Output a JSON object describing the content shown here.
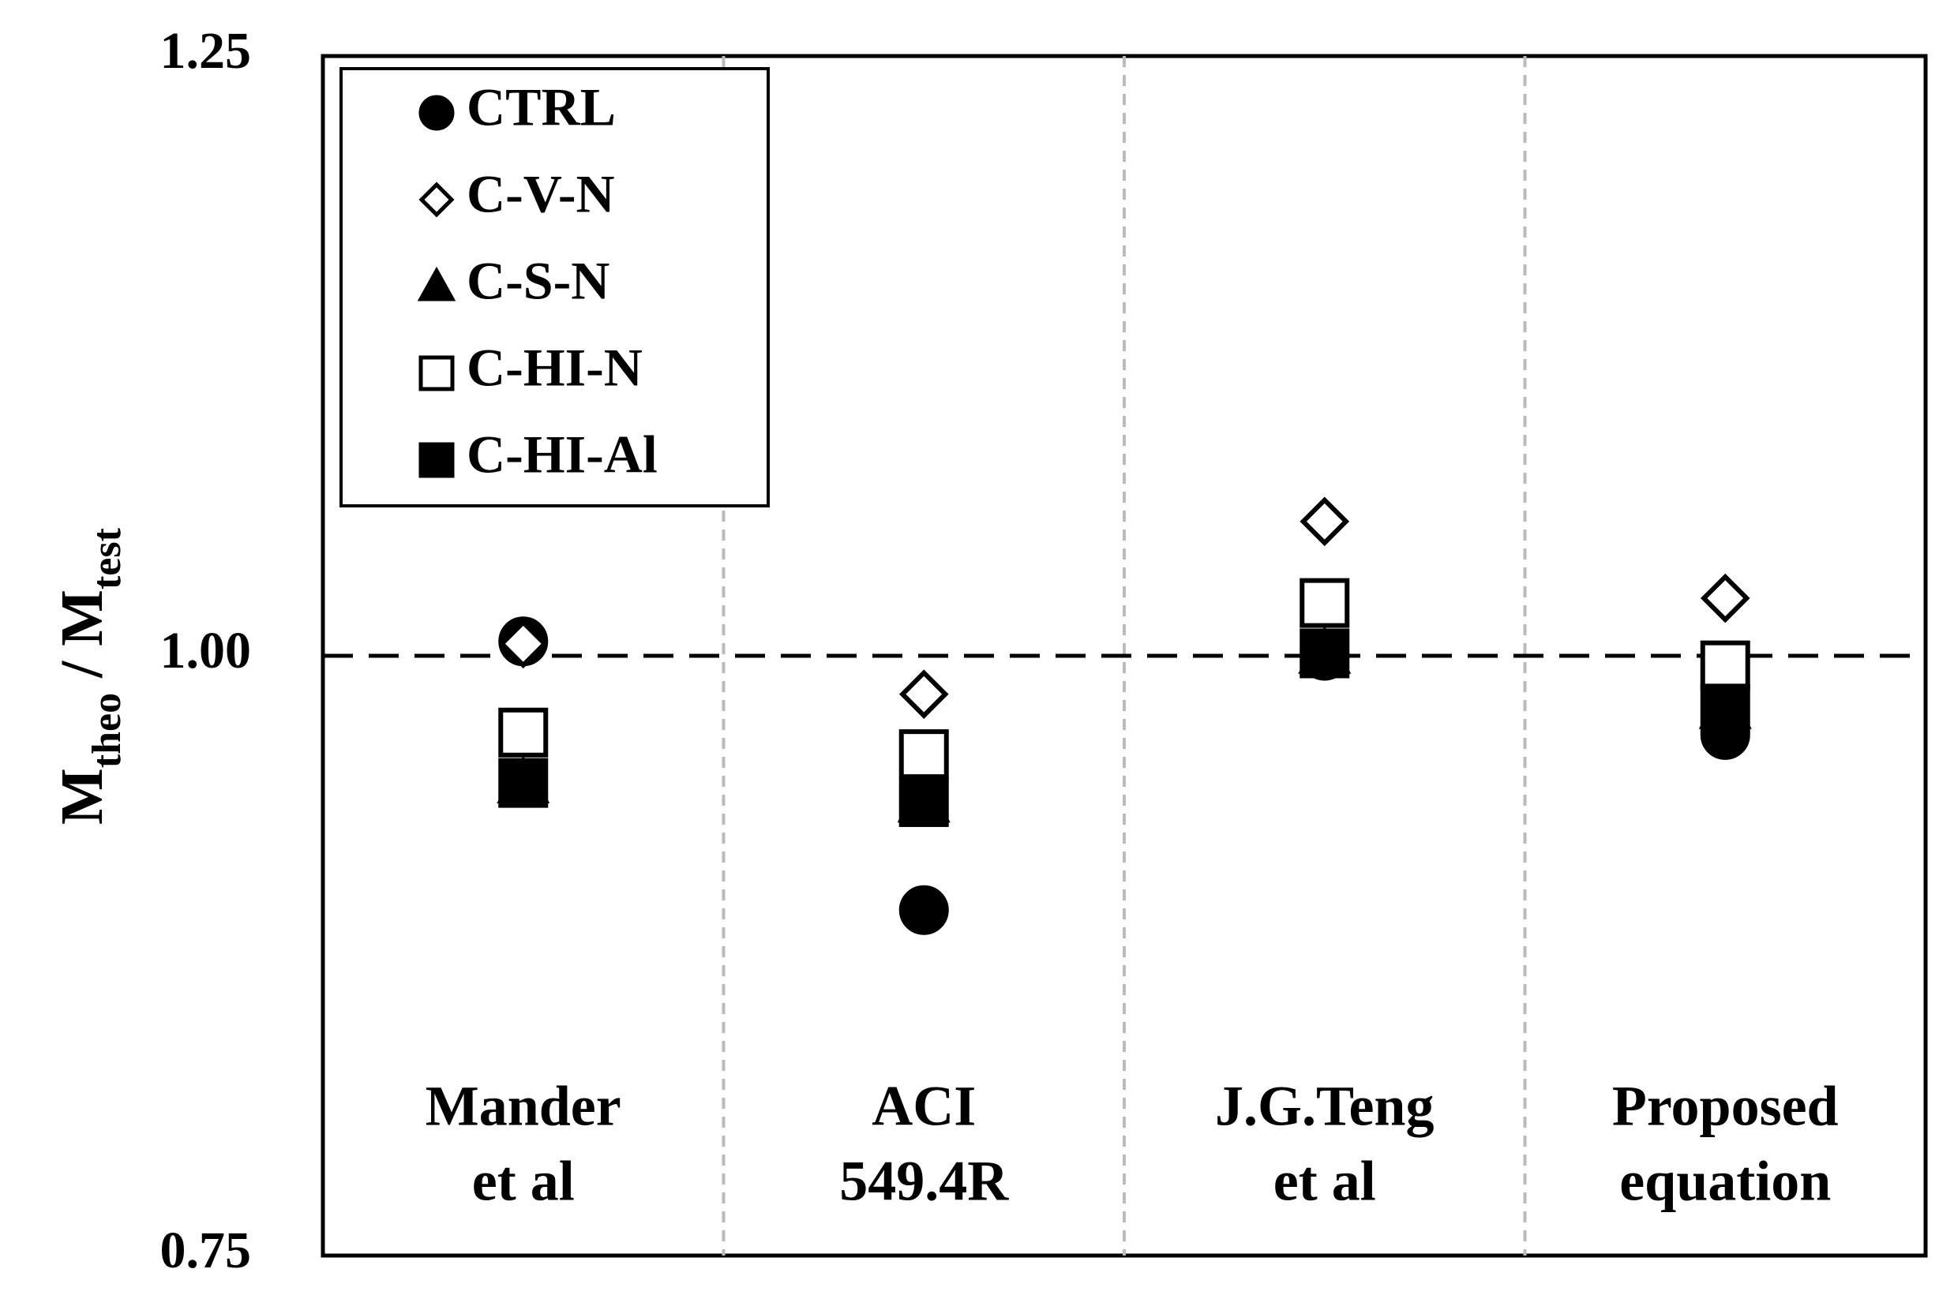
{
  "chart_data": {
    "type": "scatter",
    "ylabel": [
      {
        "text": "M"
      },
      {
        "text": "theo",
        "sub": true
      },
      {
        "text": " / M"
      },
      {
        "text": "test",
        "sub": true
      }
    ],
    "categories": [
      [
        "Mander",
        "et al"
      ],
      [
        "ACI",
        "549.4R"
      ],
      [
        "J.G.Teng",
        "et al"
      ],
      [
        "Proposed",
        "equation"
      ]
    ],
    "series": [
      {
        "name": "CTRL",
        "marker": "circle",
        "filled": true,
        "color": "#000000",
        "values": [
          1.006,
          0.894,
          1.0,
          0.967
        ]
      },
      {
        "name": "C-V-N",
        "marker": "diamond",
        "filled": false,
        "color": "#000000",
        "values": [
          1.005,
          0.984,
          1.056,
          1.024
        ]
      },
      {
        "name": "C-S-N",
        "marker": "triangle",
        "filled": true,
        "color": "#000000",
        "values": [
          0.947,
          0.939,
          1.001,
          0.978
        ]
      },
      {
        "name": "C-HI-N",
        "marker": "square",
        "filled": false,
        "color": "#000000",
        "values": [
          0.968,
          0.959,
          1.022,
          0.996
        ]
      },
      {
        "name": "C-HI-Al",
        "marker": "square",
        "filled": true,
        "color": "#000000",
        "values": [
          0.947,
          0.939,
          1.001,
          0.978
        ]
      }
    ],
    "ylim": [
      0.75,
      1.25
    ],
    "yticks": [
      0.75,
      {
        "value": 1,
        "label": "1.00"
      },
      1.25
    ],
    "reference_line": 1,
    "legend": "upper left"
  }
}
